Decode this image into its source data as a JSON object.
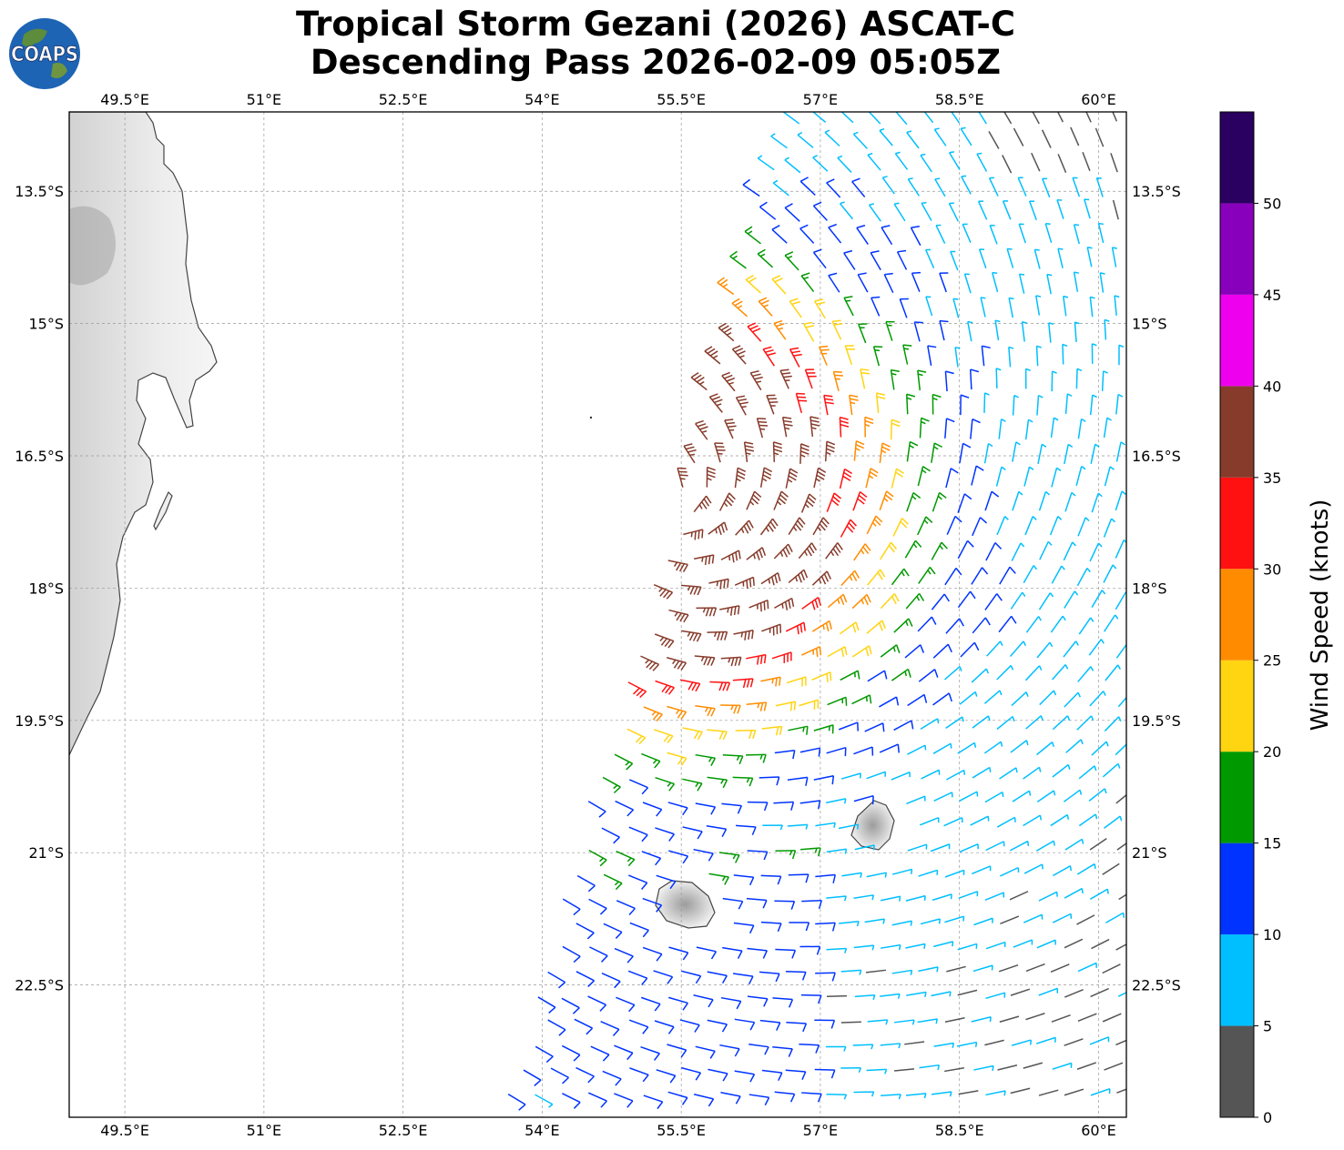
{
  "title": {
    "line1": "Tropical Storm Gezani (2026) ASCAT-C",
    "line2": "Descending Pass 2026-02-09 05:05Z"
  },
  "logo": {
    "text": "COAPS",
    "icon": "earth-globe-icon"
  },
  "map": {
    "lon_range": [
      48.9,
      60.3
    ],
    "lat_range": [
      -24.0,
      -12.6
    ],
    "lon_ticks": [
      49.5,
      51,
      52.5,
      54,
      55.5,
      57,
      58.5,
      60
    ],
    "lon_labels": [
      "49.5°E",
      "51°E",
      "52.5°E",
      "54°E",
      "55.5°E",
      "57°E",
      "58.5°E",
      "60°E"
    ],
    "lat_ticks": [
      -13.5,
      -15,
      -16.5,
      -18,
      -19.5,
      -21,
      -22.5
    ],
    "lat_labels": [
      "13.5°S",
      "15°S",
      "16.5°S",
      "18°S",
      "19.5°S",
      "21°S",
      "22.5°S"
    ],
    "gridlines": true,
    "land": [
      "Madagascar",
      "Réunion",
      "Mauritius"
    ]
  },
  "chart_data": {
    "type": "wind_barbs",
    "units": "knots",
    "center": {
      "lon": 55.3,
      "lat": -17.0
    },
    "swath": "descending pass, east of 54°E",
    "colorbar": {
      "label": "Wind Speed (knots)",
      "bins": [
        {
          "min": 0,
          "max": 5,
          "color": "#555555"
        },
        {
          "min": 5,
          "max": 10,
          "color": "#00bfff"
        },
        {
          "min": 10,
          "max": 15,
          "color": "#0033ff"
        },
        {
          "min": 15,
          "max": 20,
          "color": "#009900"
        },
        {
          "min": 20,
          "max": 25,
          "color": "#ffd411"
        },
        {
          "min": 25,
          "max": 30,
          "color": "#ff8c00"
        },
        {
          "min": 30,
          "max": 35,
          "color": "#ff1111"
        },
        {
          "min": 35,
          "max": 40,
          "color": "#873b2b"
        },
        {
          "min": 40,
          "max": 45,
          "color": "#ee00ee"
        },
        {
          "min": 45,
          "max": 50,
          "color": "#8800bb"
        },
        {
          "min": 50,
          "max": 55,
          "color": "#2a0060"
        }
      ],
      "tick_values": [
        0,
        5,
        10,
        15,
        20,
        25,
        30,
        35,
        40,
        45,
        50
      ],
      "tick_labels": [
        "0",
        "5",
        "10",
        "15",
        "20",
        "25",
        "30",
        "35",
        "40",
        "45",
        "50"
      ]
    }
  }
}
